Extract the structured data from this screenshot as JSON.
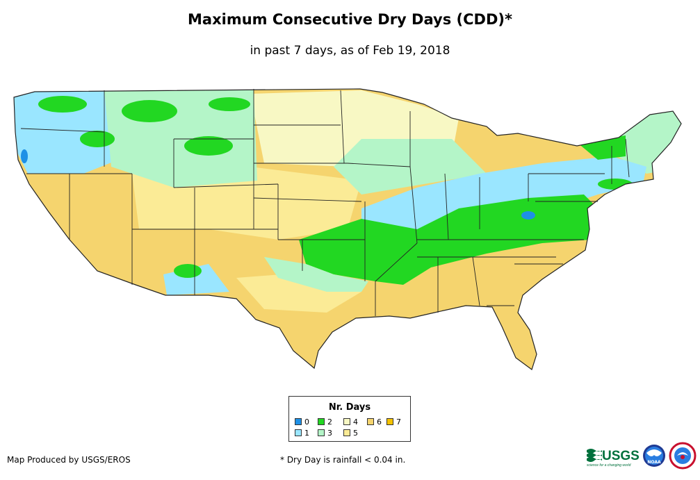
{
  "title": "Maximum Consecutive Dry Days (CDD)*",
  "subtitle": "in past 7 days, as of Feb 19, 2018",
  "legend": {
    "title": "Nr. Days",
    "items": [
      {
        "label": "0",
        "color": "#1e90e6"
      },
      {
        "label": "1",
        "color": "#9ae6ff"
      },
      {
        "label": "2",
        "color": "#22d722"
      },
      {
        "label": "3",
        "color": "#b4f5c8"
      },
      {
        "label": "4",
        "color": "#f8f8c4"
      },
      {
        "label": "5",
        "color": "#fbeb96"
      },
      {
        "label": "6",
        "color": "#f5d46e"
      },
      {
        "label": "7",
        "color": "#f5c200"
      }
    ]
  },
  "footer": {
    "credit": "Map Produced by USGS/EROS",
    "note": "* Dry Day is rainfall < 0.04 in."
  },
  "logos": {
    "usgs": "USGS",
    "usgs_tagline": "science for a changing world",
    "noaa": "NOAA"
  }
}
